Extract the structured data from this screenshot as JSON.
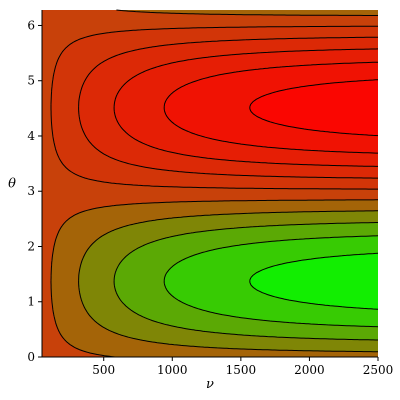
{
  "chart_data": {
    "type": "heatmap",
    "style": "filled-contour",
    "xlabel": "ν",
    "ylabel": "θ",
    "xlim": [
      50,
      2500
    ],
    "ylim": [
      0,
      6.28
    ],
    "x_ticks": [
      {
        "value": 500,
        "label": "500"
      },
      {
        "value": 1000,
        "label": "1000"
      },
      {
        "value": 1500,
        "label": "1500"
      },
      {
        "value": 2000,
        "label": "2000"
      },
      {
        "value": 2500,
        "label": "2500"
      }
    ],
    "y_ticks": [
      {
        "value": 0,
        "label": "0"
      },
      {
        "value": 1,
        "label": "1"
      },
      {
        "value": 2,
        "label": "2"
      },
      {
        "value": 3,
        "label": "3"
      },
      {
        "value": 4,
        "label": "4"
      },
      {
        "value": 5,
        "label": "5"
      },
      {
        "value": 6,
        "label": "6"
      }
    ],
    "function_shape": "amplitude grows with ν, varies as sin(θ)",
    "colormap": {
      "low": "#00ff00",
      "mid": "#c8410a",
      "high": "#ff0000"
    },
    "levels": 11,
    "grid": false,
    "legend": "none"
  }
}
